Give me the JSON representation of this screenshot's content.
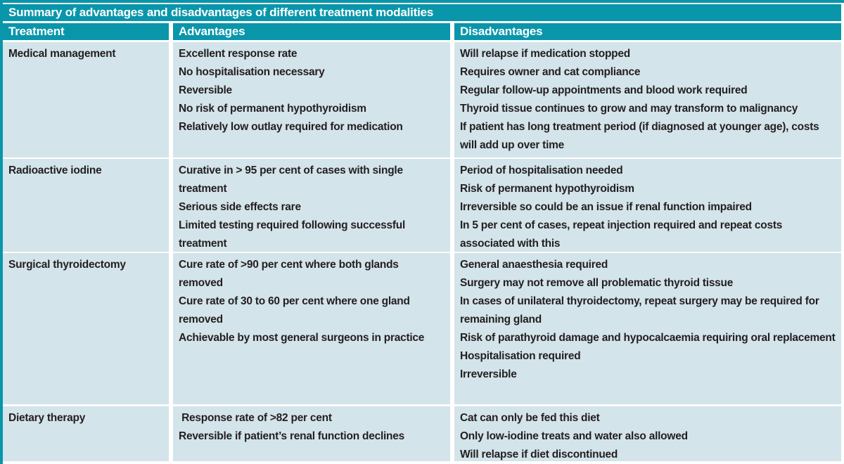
{
  "table": {
    "title": "Summary of advantages and disadvantages of different treatment modalities",
    "columns": [
      "Treatment",
      "Advantages",
      "Disadvantages"
    ],
    "rows": [
      {
        "treatment": "Medical management",
        "advantages": [
          "Excellent response rate",
          "No hospitalisation necessary",
          "Reversible",
          "No risk of permanent hypothyroidism",
          "Relatively low outlay required for medication"
        ],
        "disadvantages": [
          "Will relapse if medication stopped",
          "Requires owner and cat compliance",
          "Regular follow-up appointments and blood work required",
          "Thyroid tissue continues to grow and may transform to malignancy",
          "If patient has long treatment period (if diagnosed at younger age), costs will add up over time"
        ]
      },
      {
        "treatment": "Radioactive iodine",
        "advantages": [
          "Curative in > 95 per cent of cases with single treatment",
          "Serious side effects rare",
          "Limited testing required following successful treatment"
        ],
        "disadvantages": [
          "Period of hospitalisation needed",
          "Risk of permanent hypothyroidism",
          "Irreversible so could be an issue if renal function impaired",
          "In 5 per cent of cases, repeat injection required and repeat costs associated with this"
        ]
      },
      {
        "treatment": "Surgical thyroidectomy",
        "advantages": [
          "Cure rate of >90 per cent where both glands removed",
          "Cure rate of 30 to 60 per cent where one gland removed",
          "Achievable by most general surgeons in practice"
        ],
        "disadvantages": [
          "General anaesthesia required",
          "Surgery may not remove all problematic thyroid tissue",
          "In cases of unilateral thyroidectomy, repeat surgery may be required for remaining gland",
          "Risk of parathyroid damage and hypocalcaemia requiring oral replacement",
          "Hospitalisation required",
          "Irreversible"
        ]
      },
      {
        "treatment": "Dietary therapy",
        "advantages": [
          " Response rate of >82 per cent",
          "Reversible if patient’s renal function declines"
        ],
        "disadvantages": [
          "Cat can only be fed this diet",
          "Only low-iodine treats and water also allowed",
          "Will relapse if diet discontinued"
        ]
      }
    ]
  },
  "colors": {
    "teal": "#0996ab",
    "row_background": "#d3e4ea",
    "body_text": "#231f20",
    "header_text": "#ffffff"
  }
}
